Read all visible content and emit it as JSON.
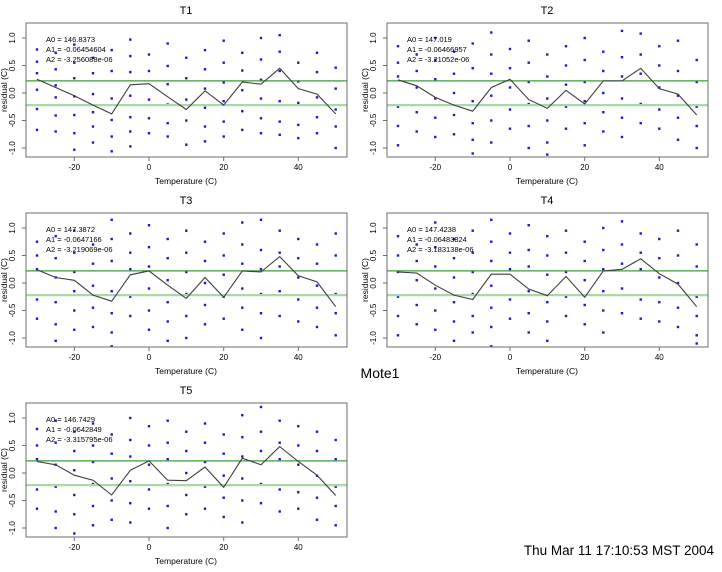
{
  "figure": {
    "outer_title": "Mote1",
    "timestamp": "Thu Mar 11 17:10:53 MST 2004",
    "background": "#ffffff"
  },
  "style": {
    "point_color": "#1a1acc",
    "line_color": "#3f3f3f",
    "upper_line_color": "#3c9c3c",
    "lower_line_color": "#a9d8a9",
    "axis_color": "#6e6e6e",
    "text_color": "#000000"
  },
  "chart_data": [
    {
      "type": "scatter",
      "title": "T1",
      "xlabel": "Temperature (C)",
      "ylabel": "residual (C)",
      "xticks": [
        -20,
        0,
        20,
        40
      ],
      "yticks": [
        "-1.0",
        "-0.5",
        "0.0",
        "0.5",
        "1.0"
      ],
      "xlim": [
        -33,
        53
      ],
      "ylim": [
        -1.16,
        1.27
      ],
      "grid": false,
      "annotation": [
        "A0 = 146.8373",
        "A1 = -0.06454604",
        "A2 = -3.256088e-06"
      ],
      "hlines": [
        0.22,
        -0.22
      ],
      "fit_line": [
        [
          -30,
          0.25
        ],
        [
          -25,
          0.1
        ],
        [
          -20,
          -0.05
        ],
        [
          -15,
          -0.22
        ],
        [
          -10,
          -0.38
        ],
        [
          -5,
          0.15
        ],
        [
          0,
          0.17
        ],
        [
          5,
          -0.07
        ],
        [
          10,
          -0.3
        ],
        [
          15,
          0.04
        ],
        [
          20,
          -0.22
        ],
        [
          25,
          0.2
        ],
        [
          30,
          0.16
        ],
        [
          35,
          0.45
        ],
        [
          40,
          0.08
        ],
        [
          45,
          -0.02
        ],
        [
          50,
          -0.38
        ]
      ],
      "points": {
        "-30": [
          0.79,
          0.57,
          0.36,
          0.06,
          -0.29,
          -0.67
        ],
        "-25": [
          0.73,
          0.43,
          0.14,
          -0.08,
          -0.41,
          -0.7
        ],
        "-20": [
          0.88,
          0.55,
          0.27,
          -0.06,
          -0.4,
          -0.73,
          -1.03
        ],
        "-15": [
          0.64,
          0.36,
          -0.02,
          -0.35,
          -0.61,
          -0.9
        ],
        "-10": [
          0.78,
          0.4,
          -0.1,
          -0.49,
          -0.79,
          -1.06
        ],
        "-5": [
          0.97,
          0.67,
          0.38,
          -0.05,
          -0.44,
          -0.7,
          -0.97
        ],
        "0": [
          0.7,
          0.4,
          -0.12,
          -0.46,
          -0.73
        ],
        "5": [
          0.9,
          0.49,
          0.16,
          -0.21,
          -0.55,
          -0.79
        ],
        "10": [
          0.64,
          0.27,
          -0.12,
          -0.5,
          -0.94
        ],
        "15": [
          0.78,
          0.43,
          0.08,
          -0.27,
          -0.61,
          -0.88
        ],
        "20": [
          0.95,
          0.55,
          0.19,
          -0.15,
          -0.52,
          -0.79
        ],
        "25": [
          0.73,
          0.41,
          0.05,
          -0.33,
          -0.67
        ],
        "30": [
          1.0,
          0.61,
          0.24,
          -0.1,
          -0.46,
          -0.73
        ],
        "35": [
          1.05,
          0.75,
          0.4,
          -0.15,
          -0.52,
          -0.76
        ],
        "40": [
          0.55,
          0.21,
          -0.18,
          -0.58,
          -0.82
        ],
        "45": [
          0.73,
          0.38,
          -0.08,
          -0.44,
          -0.73
        ],
        "50": [
          0.46,
          0.08,
          -0.3,
          -0.61,
          -1.0
        ]
      }
    },
    {
      "type": "scatter",
      "title": "T2",
      "xlabel": "Temperature (C)",
      "ylabel": "residual (C)",
      "xticks": [
        -20,
        0,
        20,
        40
      ],
      "yticks": [
        "-1.0",
        "-0.5",
        "0.0",
        "0.5",
        "1.0"
      ],
      "xlim": [
        -33,
        53
      ],
      "ylim": [
        -1.16,
        1.27
      ],
      "grid": false,
      "annotation": [
        "A0 = 147.019",
        "A1 = -0.06466957",
        "A2 = -3.21052e-06"
      ],
      "hlines": [
        0.22,
        -0.22
      ],
      "fit_line": [
        [
          -30,
          0.24
        ],
        [
          -25,
          0.13
        ],
        [
          -20,
          -0.08
        ],
        [
          -15,
          -0.22
        ],
        [
          -10,
          -0.33
        ],
        [
          -5,
          0.1
        ],
        [
          0,
          0.25
        ],
        [
          5,
          -0.12
        ],
        [
          10,
          -0.28
        ],
        [
          15,
          0.05
        ],
        [
          20,
          -0.2
        ],
        [
          25,
          0.22
        ],
        [
          30,
          0.22
        ],
        [
          35,
          0.45
        ],
        [
          40,
          0.08
        ],
        [
          45,
          -0.02
        ],
        [
          50,
          -0.4
        ]
      ],
      "points": {
        "-30": [
          0.85,
          0.55,
          0.3,
          -0.25,
          -0.6,
          -0.95
        ],
        "-25": [
          0.7,
          0.4,
          0.1,
          -0.35,
          -0.7
        ],
        "-20": [
          1.0,
          0.6,
          0.25,
          -0.1,
          -0.45,
          -0.8
        ],
        "-15": [
          0.75,
          0.35,
          0.0,
          -0.4,
          -0.75
        ],
        "-10": [
          0.9,
          0.45,
          -0.15,
          -0.55,
          -0.85,
          -1.1
        ],
        "-5": [
          1.1,
          0.7,
          0.35,
          -0.05,
          -0.5,
          -0.9
        ],
        "0": [
          0.8,
          0.45,
          0.1,
          -0.3,
          -0.65
        ],
        "5": [
          0.95,
          0.55,
          0.2,
          -0.2,
          -0.6,
          -1.0
        ],
        "10": [
          0.7,
          0.3,
          -0.1,
          -0.5,
          -0.9,
          -1.12
        ],
        "15": [
          0.85,
          0.5,
          0.15,
          -0.25,
          -0.65
        ],
        "20": [
          1.0,
          0.6,
          0.2,
          -0.15,
          -0.55,
          -0.95
        ],
        "25": [
          0.75,
          0.4,
          0.0,
          -0.35,
          -0.7
        ],
        "30": [
          1.13,
          0.65,
          0.3,
          -0.1,
          -0.45,
          -0.8
        ],
        "35": [
          1.08,
          0.7,
          0.35,
          -0.2,
          -0.55
        ],
        "40": [
          0.85,
          0.5,
          0.1,
          -0.3,
          -0.65
        ],
        "45": [
          0.95,
          0.4,
          -0.05,
          -0.45,
          -0.85
        ],
        "50": [
          0.6,
          0.2,
          -0.25,
          -0.6,
          -1.0
        ]
      }
    },
    {
      "type": "scatter",
      "title": "T3",
      "xlabel": "Temperature (C)",
      "ylabel": "residual (C)",
      "xticks": [
        -20,
        0,
        20,
        40
      ],
      "yticks": [
        "-1.0",
        "-0.5",
        "0.0",
        "0.5",
        "1.0"
      ],
      "xlim": [
        -33,
        53
      ],
      "ylim": [
        -1.16,
        1.27
      ],
      "grid": false,
      "annotation": [
        "A0 = 147.3872",
        "A1 = -0.0647166",
        "A2 = -3.219069e-06"
      ],
      "hlines": [
        0.22,
        -0.22
      ],
      "fit_line": [
        [
          -30,
          0.24
        ],
        [
          -25,
          0.1
        ],
        [
          -20,
          0.05
        ],
        [
          -15,
          -0.22
        ],
        [
          -10,
          -0.33
        ],
        [
          -5,
          0.15
        ],
        [
          0,
          0.22
        ],
        [
          5,
          -0.04
        ],
        [
          10,
          -0.28
        ],
        [
          15,
          0.1
        ],
        [
          20,
          -0.26
        ],
        [
          25,
          0.22
        ],
        [
          30,
          0.2
        ],
        [
          35,
          0.48
        ],
        [
          40,
          0.13
        ],
        [
          45,
          0.02
        ],
        [
          50,
          -0.43
        ]
      ],
      "points": {
        "-30": [
          0.75,
          0.5,
          0.25,
          -0.3,
          -0.65
        ],
        "-25": [
          0.85,
          0.45,
          0.1,
          -0.35,
          -0.75,
          -1.05
        ],
        "-20": [
          0.95,
          0.55,
          0.2,
          -0.15,
          -0.5,
          -0.85
        ],
        "-15": [
          0.7,
          0.35,
          -0.05,
          -0.45,
          -0.8
        ],
        "-10": [
          1.15,
          0.8,
          0.4,
          -0.15,
          -0.55,
          -0.9,
          -1.15
        ],
        "-5": [
          0.9,
          0.55,
          0.25,
          -0.25,
          -0.6
        ],
        "0": [
          1.05,
          0.65,
          0.3,
          -0.1,
          -0.5,
          -0.85
        ],
        "5": [
          0.8,
          0.45,
          0.05,
          -0.35,
          -0.7,
          -1.05
        ],
        "10": [
          0.95,
          0.55,
          0.2,
          -0.2,
          -0.6,
          -1.0
        ],
        "15": [
          0.75,
          0.4,
          0.0,
          -0.4,
          -0.75
        ],
        "20": [
          0.9,
          0.5,
          0.15,
          -0.25,
          -0.65
        ],
        "25": [
          1.1,
          0.7,
          0.35,
          -0.1,
          -0.45,
          -0.85
        ],
        "30": [
          1.15,
          0.6,
          0.25,
          -0.2,
          -0.55,
          -1.0
        ],
        "35": [
          0.95,
          0.55,
          0.3,
          -0.15,
          -0.6
        ],
        "40": [
          0.8,
          0.45,
          0.1,
          -0.3,
          -0.7
        ],
        "45": [
          0.7,
          0.35,
          -0.05,
          -0.45,
          -0.8
        ],
        "50": [
          0.9,
          0.5,
          -0.2,
          -0.55,
          -0.95
        ]
      }
    },
    {
      "type": "scatter",
      "title": "T4",
      "xlabel": "Temperature (C)",
      "ylabel": "residual (C)",
      "xticks": [
        -20,
        0,
        20,
        40
      ],
      "yticks": [
        "-1.0",
        "-0.5",
        "0.0",
        "0.5",
        "1.0"
      ],
      "xlim": [
        -33,
        53
      ],
      "ylim": [
        -1.16,
        1.27
      ],
      "grid": false,
      "annotation": [
        "A0 = 147.4238",
        "A1 = -0.06483824",
        "A2 = -3.183138e-06"
      ],
      "hlines": [
        0.22,
        -0.22
      ],
      "fit_line": [
        [
          -30,
          0.2
        ],
        [
          -25,
          0.18
        ],
        [
          -20,
          -0.04
        ],
        [
          -15,
          -0.22
        ],
        [
          -10,
          -0.3
        ],
        [
          -5,
          0.16
        ],
        [
          0,
          0.16
        ],
        [
          5,
          -0.11
        ],
        [
          10,
          -0.23
        ],
        [
          15,
          0.12
        ],
        [
          20,
          -0.26
        ],
        [
          25,
          0.22
        ],
        [
          30,
          0.25
        ],
        [
          35,
          0.44
        ],
        [
          40,
          0.17
        ],
        [
          45,
          -0.02
        ],
        [
          50,
          -0.43
        ]
      ],
      "points": {
        "-30": [
          0.85,
          0.5,
          0.2,
          -0.25,
          -0.6,
          -0.95
        ],
        "-25": [
          0.7,
          0.4,
          0.05,
          -0.4,
          -0.75
        ],
        "-20": [
          1.1,
          0.65,
          0.3,
          -0.1,
          -0.5,
          -0.85
        ],
        "-15": [
          0.8,
          0.45,
          0.1,
          -0.35,
          -0.7,
          -1.05
        ],
        "-10": [
          0.95,
          0.55,
          0.2,
          -0.2,
          -0.6,
          -0.9
        ],
        "-5": [
          1.15,
          0.75,
          0.4,
          -0.05,
          -0.45,
          -0.8,
          -1.15
        ],
        "0": [
          0.9,
          0.55,
          0.25,
          -0.3,
          -0.65
        ],
        "5": [
          1.05,
          0.6,
          0.3,
          -0.15,
          -0.55,
          -0.9
        ],
        "10": [
          0.85,
          0.5,
          0.15,
          -0.35,
          -0.7,
          -1.05
        ],
        "15": [
          0.95,
          0.55,
          0.2,
          -0.25,
          -0.6
        ],
        "20": [
          0.75,
          0.4,
          0.05,
          -0.4,
          -0.75
        ],
        "25": [
          1.0,
          0.6,
          0.25,
          -0.15,
          -0.5,
          -0.9
        ],
        "30": [
          1.12,
          0.7,
          0.35,
          -0.1,
          -0.55
        ],
        "35": [
          0.9,
          0.55,
          0.25,
          -0.3,
          -0.65
        ],
        "40": [
          0.8,
          0.45,
          0.1,
          -0.35,
          -0.7
        ],
        "45": [
          0.95,
          0.5,
          0.0,
          -0.45,
          -0.8
        ],
        "50": [
          0.7,
          0.3,
          -0.25,
          -0.6,
          -0.95,
          -1.1
        ]
      }
    },
    {
      "type": "scatter",
      "title": "T5",
      "xlabel": "Temperature (C)",
      "ylabel": "residual (C)",
      "xticks": [
        -20,
        0,
        20,
        40
      ],
      "yticks": [
        "-1.0",
        "-0.5",
        "0.0",
        "0.5",
        "1.0"
      ],
      "xlim": [
        -33,
        53
      ],
      "ylim": [
        -1.16,
        1.27
      ],
      "grid": false,
      "annotation": [
        "A0 = 146.7429",
        "A1 = -0.0642849",
        "A2 = -3.315795e-06"
      ],
      "hlines": [
        0.22,
        -0.22
      ],
      "fit_line": [
        [
          -30,
          0.21
        ],
        [
          -25,
          0.15
        ],
        [
          -20,
          -0.04
        ],
        [
          -15,
          -0.13
        ],
        [
          -10,
          -0.4
        ],
        [
          -5,
          0.05
        ],
        [
          0,
          0.22
        ],
        [
          5,
          -0.13
        ],
        [
          10,
          -0.14
        ],
        [
          15,
          0.11
        ],
        [
          20,
          -0.26
        ],
        [
          25,
          0.27
        ],
        [
          30,
          0.15
        ],
        [
          35,
          0.48
        ],
        [
          40,
          0.21
        ],
        [
          45,
          -0.04
        ],
        [
          50,
          -0.41
        ]
      ],
      "points": {
        "-30": [
          0.8,
          0.5,
          0.25,
          -0.3,
          -0.65
        ],
        "-25": [
          0.95,
          0.55,
          0.15,
          -0.25,
          -0.7,
          -1.0
        ],
        "-20": [
          0.75,
          0.4,
          0.05,
          -0.4,
          -0.75,
          -1.1
        ],
        "-15": [
          0.9,
          0.5,
          0.2,
          -0.2,
          -0.6,
          -0.95
        ],
        "-10": [
          0.7,
          0.35,
          -0.1,
          -0.5,
          -0.85
        ],
        "-5": [
          1.0,
          0.6,
          0.3,
          -0.15,
          -0.55,
          -0.9
        ],
        "0": [
          0.85,
          0.5,
          0.15,
          -0.3,
          -0.65
        ],
        "5": [
          0.95,
          0.55,
          0.25,
          -0.2,
          -0.6,
          -1.0
        ],
        "10": [
          0.75,
          0.4,
          0.0,
          -0.4,
          -0.75
        ],
        "15": [
          0.9,
          0.55,
          0.2,
          -0.25,
          -0.65
        ],
        "20": [
          0.7,
          0.35,
          -0.05,
          -0.45,
          -0.8
        ],
        "25": [
          1.05,
          0.65,
          0.3,
          -0.1,
          -0.5,
          -0.9
        ],
        "30": [
          1.2,
          0.75,
          0.4,
          -0.2,
          -0.55
        ],
        "35": [
          0.95,
          0.55,
          0.25,
          -0.3,
          -0.7
        ],
        "40": [
          0.85,
          0.5,
          0.15,
          -0.35,
          -0.65
        ],
        "45": [
          0.75,
          0.4,
          -0.05,
          -0.45,
          -0.85
        ],
        "50": [
          0.6,
          0.25,
          -0.25,
          -0.6,
          -0.95
        ]
      }
    }
  ]
}
